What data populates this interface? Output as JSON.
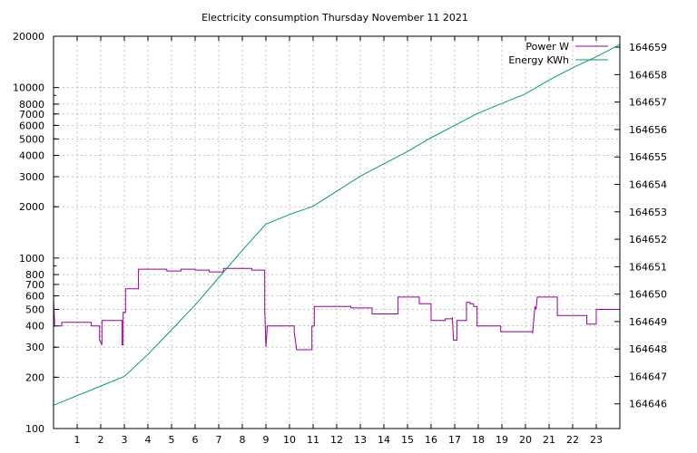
{
  "chart_data": {
    "type": "line",
    "title": "Electricity consumption Thursday November 11 2021",
    "x_ticks": [
      "1",
      "2",
      "3",
      "4",
      "5",
      "6",
      "7",
      "8",
      "9",
      "10",
      "11",
      "12",
      "13",
      "14",
      "15",
      "16",
      "17",
      "18",
      "19",
      "20",
      "21",
      "22",
      "23"
    ],
    "xlim": [
      0,
      24
    ],
    "ylim_left": [
      100,
      20000
    ],
    "y_scale_left": "log",
    "y_ticks_left": [
      "100",
      "200",
      "300",
      "400",
      "500",
      "600",
      "700",
      "800",
      "1000",
      "2000",
      "3000",
      "4000",
      "5000",
      "6000",
      "7000",
      "8000",
      "10000",
      "20000"
    ],
    "ylim_right": [
      164645.1,
      164659.4
    ],
    "y_ticks_right": [
      "164646",
      "164647",
      "164648",
      "164649",
      "164650",
      "164651",
      "164652",
      "164653",
      "164654",
      "164655",
      "164656",
      "164657",
      "164658",
      "164659"
    ],
    "grid": true,
    "legend_position": "top-right",
    "series": [
      {
        "name": "Power W",
        "axis": "left",
        "color": "#940094",
        "points": [
          [
            0.0,
            580
          ],
          [
            0.05,
            400
          ],
          [
            0.35,
            400
          ],
          [
            0.35,
            420
          ],
          [
            1.6,
            420
          ],
          [
            1.6,
            400
          ],
          [
            1.95,
            400
          ],
          [
            1.95,
            330
          ],
          [
            2.05,
            310
          ],
          [
            2.05,
            430
          ],
          [
            2.9,
            430
          ],
          [
            2.9,
            310
          ],
          [
            2.95,
            310
          ],
          [
            2.95,
            480
          ],
          [
            3.05,
            480
          ],
          [
            3.05,
            660
          ],
          [
            3.6,
            660
          ],
          [
            3.6,
            860
          ],
          [
            4.8,
            860
          ],
          [
            4.8,
            840
          ],
          [
            5.4,
            840
          ],
          [
            5.4,
            860
          ],
          [
            6.0,
            860
          ],
          [
            6.0,
            850
          ],
          [
            6.6,
            850
          ],
          [
            6.6,
            830
          ],
          [
            7.2,
            830
          ],
          [
            7.2,
            870
          ],
          [
            8.4,
            870
          ],
          [
            8.4,
            850
          ],
          [
            8.95,
            850
          ],
          [
            8.95,
            500
          ],
          [
            9.0,
            300
          ],
          [
            9.05,
            380
          ],
          [
            9.05,
            400
          ],
          [
            10.2,
            400
          ],
          [
            10.2,
            370
          ],
          [
            10.3,
            290
          ],
          [
            10.95,
            290
          ],
          [
            10.95,
            400
          ],
          [
            11.05,
            400
          ],
          [
            11.05,
            520
          ],
          [
            12.6,
            520
          ],
          [
            12.6,
            510
          ],
          [
            13.5,
            510
          ],
          [
            13.5,
            470
          ],
          [
            14.6,
            470
          ],
          [
            14.6,
            590
          ],
          [
            15.5,
            590
          ],
          [
            15.5,
            540
          ],
          [
            16.0,
            540
          ],
          [
            16.0,
            430
          ],
          [
            16.6,
            430
          ],
          [
            16.6,
            440
          ],
          [
            16.9,
            440
          ],
          [
            16.9,
            450
          ],
          [
            16.95,
            330
          ],
          [
            17.1,
            330
          ],
          [
            17.1,
            430
          ],
          [
            17.5,
            430
          ],
          [
            17.5,
            550
          ],
          [
            17.65,
            550
          ],
          [
            17.65,
            540
          ],
          [
            17.8,
            540
          ],
          [
            17.8,
            520
          ],
          [
            17.95,
            520
          ],
          [
            17.95,
            400
          ],
          [
            18.95,
            400
          ],
          [
            18.95,
            370
          ],
          [
            20.3,
            370
          ],
          [
            20.3,
            360
          ],
          [
            20.4,
            520
          ],
          [
            20.45,
            500
          ],
          [
            20.5,
            590
          ],
          [
            21.35,
            590
          ],
          [
            21.35,
            460
          ],
          [
            22.6,
            460
          ],
          [
            22.6,
            410
          ],
          [
            23.0,
            410
          ],
          [
            23.0,
            500
          ],
          [
            24.0,
            500
          ]
        ]
      },
      {
        "name": "Energy KWh",
        "axis": "right",
        "color": "#009e73",
        "points": [
          [
            0.0,
            164645.95
          ],
          [
            1.0,
            164646.3
          ],
          [
            2.0,
            164646.65
          ],
          [
            3.0,
            164647.0
          ],
          [
            4.0,
            164647.8
          ],
          [
            5.0,
            164648.7
          ],
          [
            6.0,
            164649.6
          ],
          [
            7.0,
            164650.6
          ],
          [
            8.0,
            164651.6
          ],
          [
            9.0,
            164652.55
          ],
          [
            10.0,
            164652.9
          ],
          [
            11.0,
            164653.2
          ],
          [
            12.0,
            164653.75
          ],
          [
            13.0,
            164654.3
          ],
          [
            14.0,
            164654.75
          ],
          [
            15.0,
            164655.2
          ],
          [
            16.0,
            164655.7
          ],
          [
            17.0,
            164656.15
          ],
          [
            18.0,
            164656.6
          ],
          [
            19.0,
            164656.95
          ],
          [
            20.0,
            164657.3
          ],
          [
            21.0,
            164657.8
          ],
          [
            22.0,
            164658.25
          ],
          [
            23.0,
            164658.65
          ],
          [
            24.0,
            164659.1
          ]
        ]
      }
    ]
  }
}
